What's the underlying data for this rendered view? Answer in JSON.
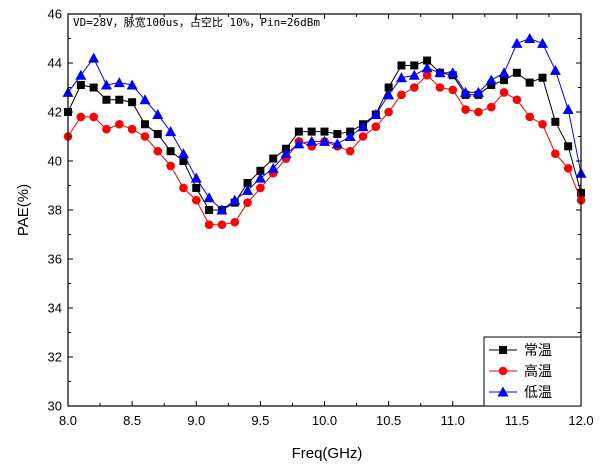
{
  "chart_data": {
    "type": "line",
    "annotation": "VD=28V，脉宽100us，占空比 10%，Pin=26dBm",
    "xlabel": "Freq(GHz)",
    "ylabel": "PAE(%)",
    "xlim": [
      8.0,
      12.0
    ],
    "ylim": [
      30,
      46
    ],
    "xticks": [
      "8.0",
      "8.5",
      "9.0",
      "9.5",
      "10.0",
      "10.5",
      "11.0",
      "11.5",
      "12.0"
    ],
    "yticks": [
      "30",
      "32",
      "34",
      "36",
      "38",
      "40",
      "42",
      "44",
      "46"
    ],
    "legend_position": "bottom-right",
    "x": [
      8.0,
      8.1,
      8.2,
      8.3,
      8.4,
      8.5,
      8.6,
      8.7,
      8.8,
      8.9,
      9.0,
      9.1,
      9.2,
      9.3,
      9.4,
      9.5,
      9.6,
      9.7,
      9.8,
      9.9,
      10.0,
      10.1,
      10.2,
      10.3,
      10.4,
      10.5,
      10.6,
      10.7,
      10.8,
      10.9,
      11.0,
      11.1,
      11.2,
      11.3,
      11.4,
      11.5,
      11.6,
      11.7,
      11.8,
      11.9,
      12.0
    ],
    "series": [
      {
        "name": "常温",
        "color": "#000000",
        "marker": "square",
        "values": [
          42.0,
          43.1,
          43.0,
          42.5,
          42.5,
          42.4,
          41.5,
          41.1,
          40.4,
          40.0,
          38.9,
          38.0,
          38.0,
          38.3,
          39.1,
          39.6,
          40.1,
          40.5,
          41.2,
          41.2,
          41.2,
          41.1,
          41.2,
          41.5,
          41.9,
          43.0,
          43.9,
          43.9,
          44.1,
          43.6,
          43.5,
          42.7,
          42.7,
          43.1,
          43.3,
          43.6,
          43.2,
          43.4,
          41.6,
          40.6,
          38.7
        ]
      },
      {
        "name": "高温",
        "color": "#ff0000",
        "marker": "circle",
        "values": [
          41.0,
          41.8,
          41.8,
          41.3,
          41.5,
          41.3,
          41.0,
          40.4,
          39.8,
          38.9,
          38.4,
          37.4,
          37.4,
          37.5,
          38.3,
          38.9,
          39.5,
          40.1,
          40.8,
          40.6,
          40.8,
          40.6,
          40.4,
          41.0,
          41.4,
          42.0,
          42.7,
          43.0,
          43.5,
          43.0,
          42.9,
          42.1,
          42.0,
          42.2,
          42.8,
          42.5,
          41.8,
          41.5,
          40.3,
          39.7,
          38.4
        ]
      },
      {
        "name": "低温",
        "color": "#0000ff",
        "marker": "triangle",
        "values": [
          42.8,
          43.5,
          44.2,
          43.1,
          43.2,
          43.1,
          42.5,
          41.9,
          41.2,
          40.3,
          39.3,
          38.5,
          38.0,
          38.4,
          38.8,
          39.3,
          39.7,
          40.3,
          40.7,
          40.8,
          40.8,
          40.7,
          41.0,
          41.4,
          41.9,
          42.7,
          43.4,
          43.5,
          43.8,
          43.6,
          43.6,
          42.8,
          42.8,
          43.3,
          43.6,
          44.8,
          45.0,
          44.8,
          43.7,
          42.1,
          39.5
        ]
      }
    ]
  }
}
